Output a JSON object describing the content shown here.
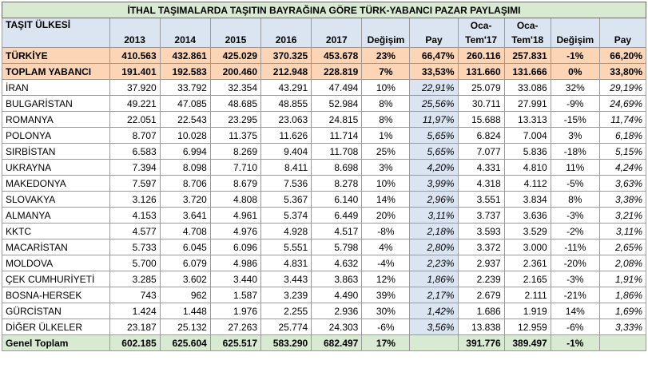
{
  "title": "İTHAL TAŞIMALARDA TAŞITIN BAYRAĞINA GÖRE TÜRK-YABANCI PAZAR PAYLAŞIMI",
  "headers": {
    "country": "TAŞIT ÜLKESİ",
    "y2013": "2013",
    "y2014": "2014",
    "y2015": "2015",
    "y2016": "2016",
    "y2017": "2017",
    "change1": "Değişim",
    "share1": "Pay",
    "oca17_a": "Oca-",
    "oca17_b": "Tem'17",
    "oca18_a": "Oca-",
    "oca18_b": "Tem'18",
    "change2": "Değişim",
    "share2": "Pay"
  },
  "rows": [
    {
      "name": "TÜRKİYE",
      "y2013": "410.563",
      "y2014": "432.861",
      "y2015": "425.029",
      "y2016": "370.325",
      "y2017": "453.678",
      "change1": "23%",
      "share1": "66,47%",
      "oca17": "260.116",
      "oca18": "257.831",
      "change2": "-1%",
      "share2": "66,20%"
    },
    {
      "name": "TOPLAM YABANCI",
      "y2013": "191.401",
      "y2014": "192.583",
      "y2015": "200.460",
      "y2016": "212.948",
      "y2017": "228.819",
      "change1": "7%",
      "share1": "33,53%",
      "oca17": "131.660",
      "oca18": "131.666",
      "change2": "0%",
      "share2": "33,80%"
    },
    {
      "name": "İRAN",
      "y2013": "37.920",
      "y2014": "33.792",
      "y2015": "32.354",
      "y2016": "43.291",
      "y2017": "47.494",
      "change1": "10%",
      "share1": "22,91%",
      "oca17": "25.079",
      "oca18": "33.086",
      "change2": "32%",
      "share2": "29,19%"
    },
    {
      "name": "BULGARİSTAN",
      "y2013": "49.221",
      "y2014": "47.085",
      "y2015": "48.685",
      "y2016": "48.855",
      "y2017": "52.984",
      "change1": "8%",
      "share1": "25,56%",
      "oca17": "30.711",
      "oca18": "27.991",
      "change2": "-9%",
      "share2": "24,69%"
    },
    {
      "name": "ROMANYA",
      "y2013": "22.051",
      "y2014": "22.543",
      "y2015": "23.295",
      "y2016": "23.063",
      "y2017": "24.815",
      "change1": "8%",
      "share1": "11,97%",
      "oca17": "15.688",
      "oca18": "13.313",
      "change2": "-15%",
      "share2": "11,74%"
    },
    {
      "name": "POLONYA",
      "y2013": "8.707",
      "y2014": "10.028",
      "y2015": "11.375",
      "y2016": "11.626",
      "y2017": "11.714",
      "change1": "1%",
      "share1": "5,65%",
      "oca17": "6.824",
      "oca18": "7.004",
      "change2": "3%",
      "share2": "6,18%"
    },
    {
      "name": "SIRBİSTAN",
      "y2013": "6.583",
      "y2014": "6.994",
      "y2015": "8.269",
      "y2016": "9.404",
      "y2017": "11.708",
      "change1": "25%",
      "share1": "5,65%",
      "oca17": "7.077",
      "oca18": "5.836",
      "change2": "-18%",
      "share2": "5,15%"
    },
    {
      "name": "UKRAYNA",
      "y2013": "7.394",
      "y2014": "8.098",
      "y2015": "7.710",
      "y2016": "8.411",
      "y2017": "8.698",
      "change1": "3%",
      "share1": "4,20%",
      "oca17": "4.331",
      "oca18": "4.810",
      "change2": "11%",
      "share2": "4,24%"
    },
    {
      "name": "MAKEDONYA",
      "y2013": "7.597",
      "y2014": "8.706",
      "y2015": "8.679",
      "y2016": "7.536",
      "y2017": "8.278",
      "change1": "10%",
      "share1": "3,99%",
      "oca17": "4.318",
      "oca18": "4.112",
      "change2": "-5%",
      "share2": "3,63%"
    },
    {
      "name": "SLOVAKYA",
      "y2013": "3.126",
      "y2014": "3.720",
      "y2015": "4.808",
      "y2016": "5.367",
      "y2017": "6.140",
      "change1": "14%",
      "share1": "2,96%",
      "oca17": "3.551",
      "oca18": "3.834",
      "change2": "8%",
      "share2": "3,38%"
    },
    {
      "name": "ALMANYA",
      "y2013": "4.153",
      "y2014": "3.641",
      "y2015": "4.961",
      "y2016": "5.374",
      "y2017": "6.449",
      "change1": "20%",
      "share1": "3,11%",
      "oca17": "3.737",
      "oca18": "3.636",
      "change2": "-3%",
      "share2": "3,21%"
    },
    {
      "name": "KKTC",
      "y2013": "4.577",
      "y2014": "4.708",
      "y2015": "4.976",
      "y2016": "4.928",
      "y2017": "4.517",
      "change1": "-8%",
      "share1": "2,18%",
      "oca17": "3.593",
      "oca18": "3.529",
      "change2": "-2%",
      "share2": "3,11%"
    },
    {
      "name": "MACARİSTAN",
      "y2013": "5.733",
      "y2014": "6.045",
      "y2015": "6.096",
      "y2016": "5.551",
      "y2017": "5.798",
      "change1": "4%",
      "share1": "2,80%",
      "oca17": "3.372",
      "oca18": "3.000",
      "change2": "-11%",
      "share2": "2,65%"
    },
    {
      "name": "MOLDOVA",
      "y2013": "5.700",
      "y2014": "6.079",
      "y2015": "4.986",
      "y2016": "4.831",
      "y2017": "4.632",
      "change1": "-4%",
      "share1": "2,23%",
      "oca17": "2.937",
      "oca18": "2.361",
      "change2": "-20%",
      "share2": "2,08%"
    },
    {
      "name": "ÇEK CUMHURİYETİ",
      "y2013": "3.285",
      "y2014": "3.602",
      "y2015": "3.440",
      "y2016": "3.443",
      "y2017": "3.863",
      "change1": "12%",
      "share1": "1,86%",
      "oca17": "2.239",
      "oca18": "2.165",
      "change2": "-3%",
      "share2": "1,91%"
    },
    {
      "name": "BOSNA-HERSEK",
      "y2013": "743",
      "y2014": "962",
      "y2015": "1.587",
      "y2016": "3.239",
      "y2017": "4.490",
      "change1": "39%",
      "share1": "2,17%",
      "oca17": "2.679",
      "oca18": "2.111",
      "change2": "-21%",
      "share2": "1,86%"
    },
    {
      "name": "GÜRCİSTAN",
      "y2013": "1.424",
      "y2014": "1.448",
      "y2015": "1.976",
      "y2016": "2.255",
      "y2017": "2.936",
      "change1": "30%",
      "share1": "1,42%",
      "oca17": "1.686",
      "oca18": "1.919",
      "change2": "14%",
      "share2": "1,69%"
    },
    {
      "name": "DİĞER ÜLKELER",
      "y2013": "23.187",
      "y2014": "25.132",
      "y2015": "27.263",
      "y2016": "25.774",
      "y2017": "24.303",
      "change1": "-6%",
      "share1": "3,56%",
      "oca17": "13.838",
      "oca18": "12.959",
      "change2": "-6%",
      "share2": "3,33%"
    }
  ],
  "total": {
    "name": "Genel Toplam",
    "y2013": "602.185",
    "y2014": "625.604",
    "y2015": "625.517",
    "y2016": "583.290",
    "y2017": "682.497",
    "change1": "17%",
    "share1": "",
    "oca17": "391.776",
    "oca18": "389.497",
    "change2": "-1%",
    "share2": ""
  }
}
